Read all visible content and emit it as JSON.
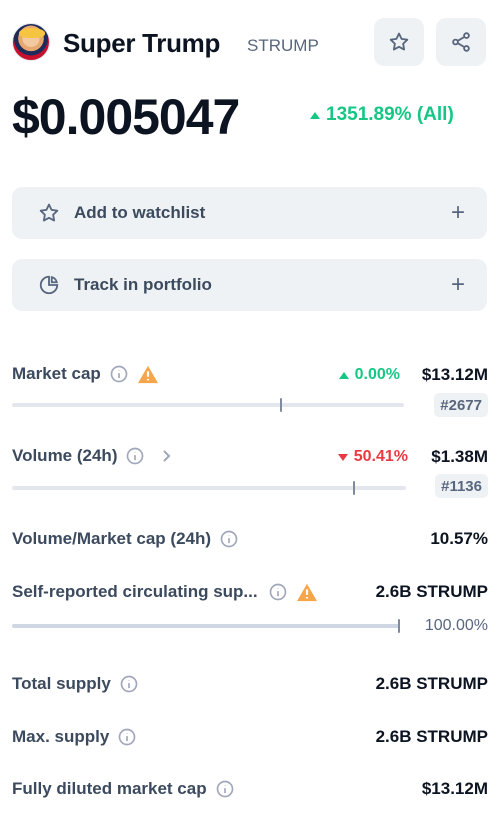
{
  "coin": {
    "name": "Super Trump",
    "symbol": "STRUMP",
    "price": "$0.005047",
    "change": "1351.89% (All)",
    "change_direction": "up"
  },
  "actions": {
    "watchlist_label": "Add to watchlist",
    "portfolio_label": "Track in portfolio"
  },
  "stats": {
    "market_cap": {
      "label": "Market cap",
      "change": "0.00%",
      "change_direction": "up",
      "value": "$13.12M",
      "rank": "#2677",
      "bar_level": 0.69
    },
    "volume": {
      "label": "Volume (24h)",
      "change": "50.41%",
      "change_direction": "down",
      "value": "$1.38M",
      "rank": "#1136",
      "bar_level": 0.87
    },
    "vol_mcap": {
      "label": "Volume/Market cap (24h)",
      "value": "10.57%"
    },
    "circulating": {
      "label": "Self-reported circulating sup...",
      "value": "2.6B STRUMP",
      "percent": "100.00%",
      "bar_level": 1.0
    },
    "total_supply": {
      "label": "Total supply",
      "value": "2.6B STRUMP"
    },
    "max_supply": {
      "label": "Max. supply",
      "value": "2.6B STRUMP"
    },
    "fdv": {
      "label": "Fully diluted market cap",
      "value": "$13.12M"
    }
  },
  "icons": {
    "star": "star-icon",
    "share": "share-icon",
    "plus": "plus-icon",
    "info": "info-icon",
    "warning": "warning-icon",
    "chevron": "chevron-right-icon",
    "pie": "pie-chart-icon"
  },
  "colors": {
    "up": "#16c784",
    "down": "#ea3943",
    "warning": "#f6a54b",
    "button_bg": "#eff2f5"
  }
}
